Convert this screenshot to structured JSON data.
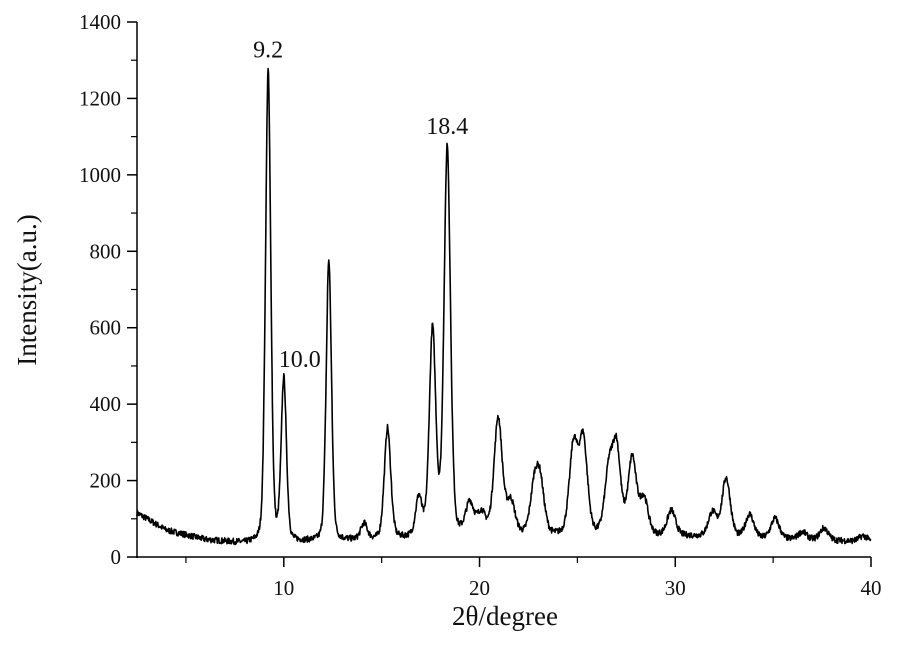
{
  "chart_data": {
    "type": "line",
    "title": "",
    "xlabel": "2θ/degree",
    "ylabel": "Intensity(a.u.)",
    "xlim": [
      2.5,
      40
    ],
    "ylim": [
      0,
      1400
    ],
    "xticks": [
      10,
      20,
      30,
      40
    ],
    "yticks": [
      0,
      200,
      400,
      600,
      800,
      1000,
      1200,
      1400
    ],
    "grid": false,
    "line_color": "#000000",
    "baseline": [
      {
        "x": 2.5,
        "y": 115
      },
      {
        "x": 4,
        "y": 70
      },
      {
        "x": 6,
        "y": 45
      },
      {
        "x": 8,
        "y": 35
      },
      {
        "x": 12,
        "y": 40
      },
      {
        "x": 20,
        "y": 55
      },
      {
        "x": 30,
        "y": 55
      },
      {
        "x": 40,
        "y": 40
      }
    ],
    "peaks": [
      {
        "x": 9.2,
        "y": 1270
      },
      {
        "x": 10.0,
        "y": 460
      },
      {
        "x": 12.3,
        "y": 775
      },
      {
        "x": 14.1,
        "y": 85
      },
      {
        "x": 15.3,
        "y": 335
      },
      {
        "x": 16.9,
        "y": 150
      },
      {
        "x": 17.6,
        "y": 590
      },
      {
        "x": 18.35,
        "y": 1070
      },
      {
        "x": 19.5,
        "y": 135
      },
      {
        "x": 20.1,
        "y": 110
      },
      {
        "x": 20.95,
        "y": 360
      },
      {
        "x": 21.6,
        "y": 140
      },
      {
        "x": 22.8,
        "y": 170
      },
      {
        "x": 23.1,
        "y": 180
      },
      {
        "x": 24.8,
        "y": 285
      },
      {
        "x": 25.3,
        "y": 300
      },
      {
        "x": 26.6,
        "y": 210
      },
      {
        "x": 27.0,
        "y": 275
      },
      {
        "x": 27.8,
        "y": 255
      },
      {
        "x": 28.4,
        "y": 150
      },
      {
        "x": 29.8,
        "y": 120
      },
      {
        "x": 31.9,
        "y": 115
      },
      {
        "x": 32.6,
        "y": 205
      },
      {
        "x": 33.8,
        "y": 110
      },
      {
        "x": 35.1,
        "y": 100
      },
      {
        "x": 36.5,
        "y": 65
      },
      {
        "x": 37.6,
        "y": 75
      },
      {
        "x": 39.6,
        "y": 55
      }
    ],
    "annotations": [
      {
        "text": "9.2",
        "x": 9.2,
        "y": 1270
      },
      {
        "text": "10.0",
        "x": 10.0,
        "y": 460
      },
      {
        "text": "18.4",
        "x": 18.35,
        "y": 1070
      }
    ]
  }
}
